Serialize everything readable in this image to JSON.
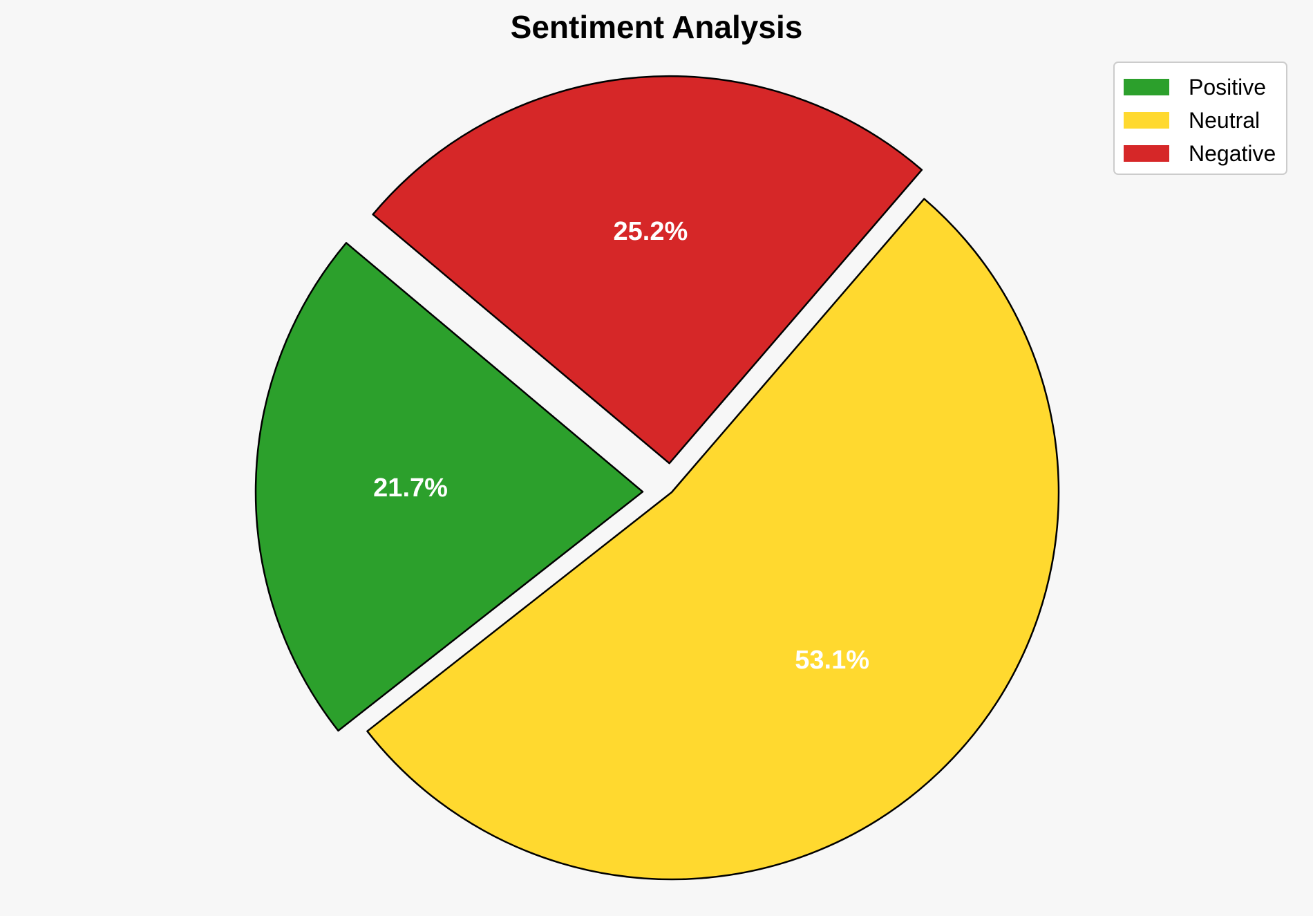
{
  "chart_data": {
    "type": "pie",
    "title": "Sentiment Analysis",
    "slices": [
      {
        "label": "Positive",
        "value": 21.7,
        "display": "21.7%",
        "color": "#2ca02c",
        "exploded": true
      },
      {
        "label": "Neutral",
        "value": 53.1,
        "display": "53.1%",
        "color": "#ffd92f",
        "exploded": false
      },
      {
        "label": "Negative",
        "value": 25.2,
        "display": "25.2%",
        "color": "#d62728",
        "exploded": true
      }
    ],
    "start_angle_deg": 140,
    "direction": "counterclockwise",
    "legend_placement": "top-right",
    "label_color": "#ffffff",
    "edge_color": "#000000"
  }
}
